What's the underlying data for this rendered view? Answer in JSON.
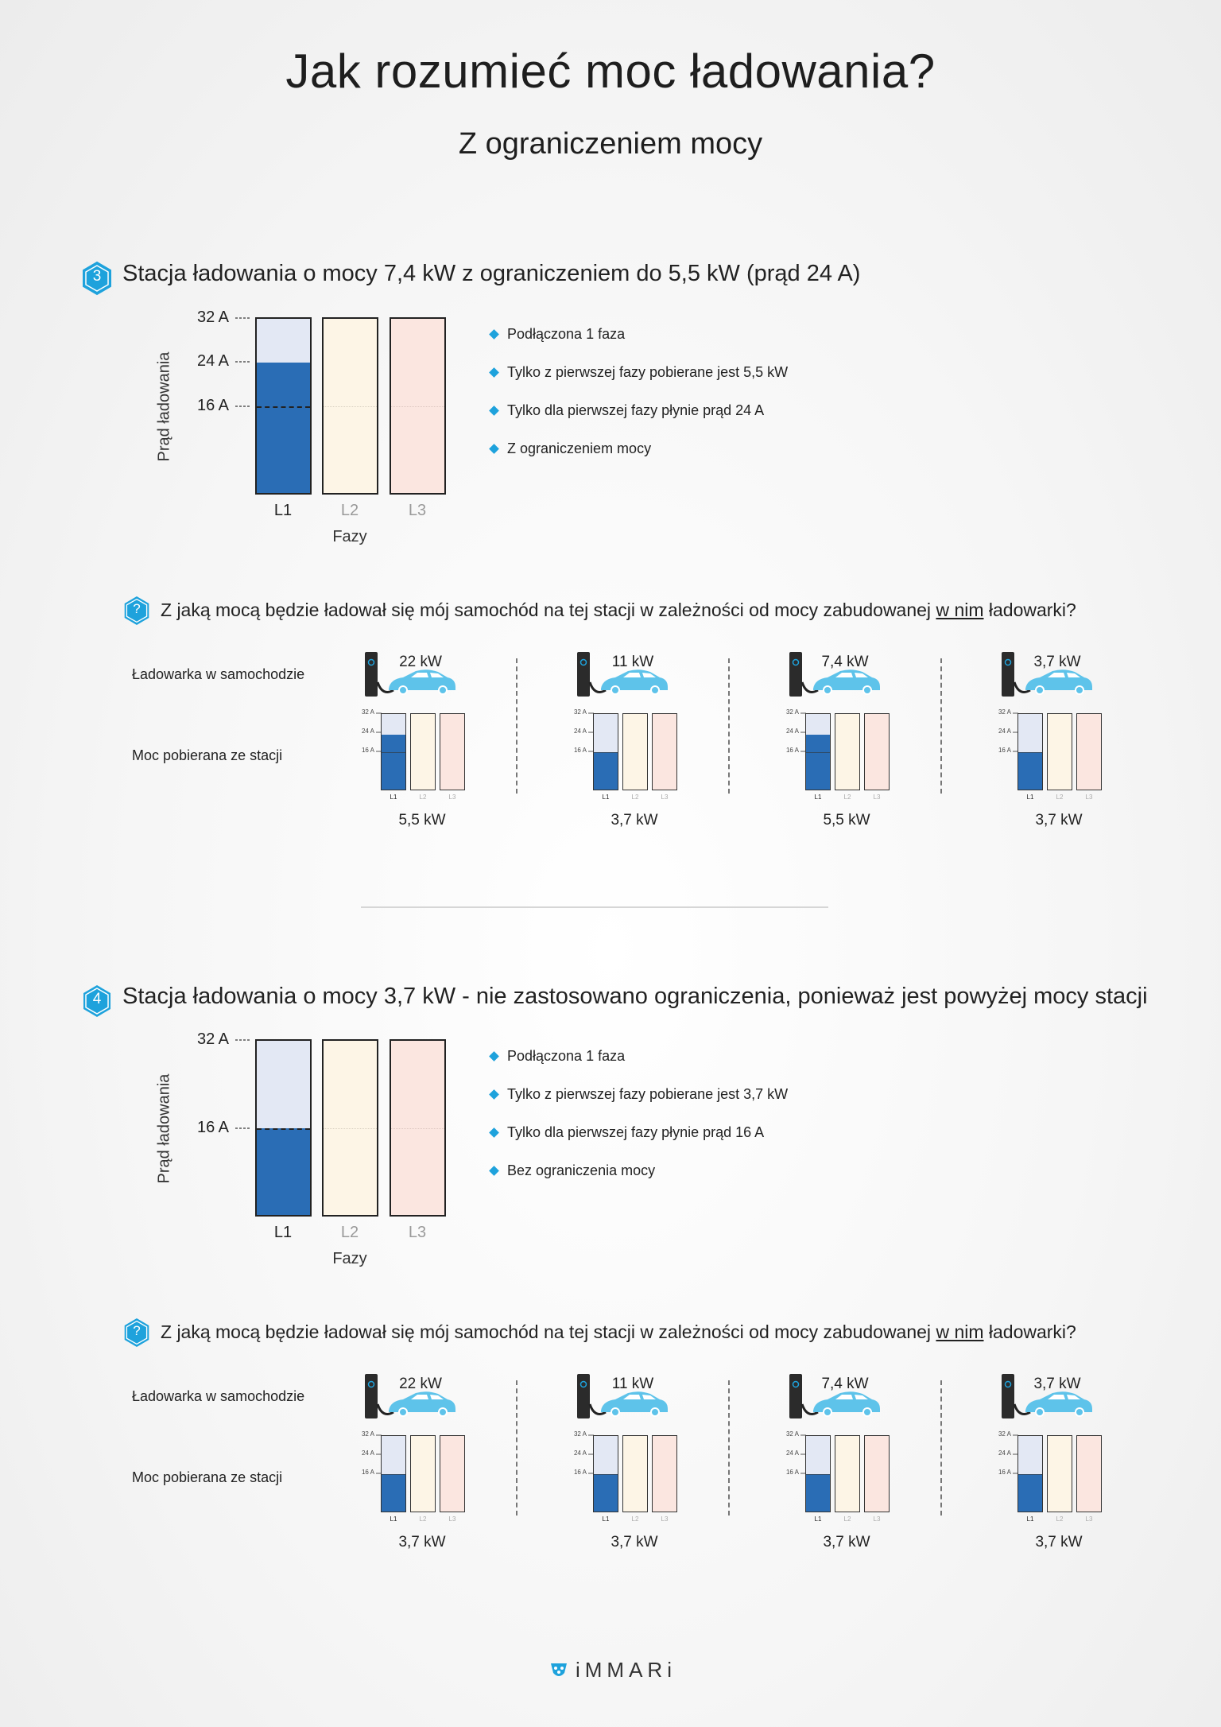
{
  "header": {
    "title": "Jak rozumieć moc ładowania?",
    "subtitle": "Z ograniczeniem mocy"
  },
  "sections": [
    {
      "number": "3",
      "title": "Stacja ładowania o mocy 7,4 kW z ograniczeniem do 5,5 kW (prąd 24 A)",
      "chart": {
        "ylabel": "Prąd ładowania",
        "xlabel": "Fazy",
        "ticks": [
          "32 A",
          "24 A",
          "16 A"
        ],
        "phases": [
          "L1",
          "L2",
          "L3"
        ],
        "l1_fill_fraction": 0.75
      },
      "bullets": [
        "Podłączona 1 faza",
        "Tylko z pierwszej fazy pobierane jest 5,5 kW",
        "Tylko dla pierwszej fazy płynie prąd 24 A",
        "Z ograniczeniem mocy"
      ],
      "question": {
        "pre": "Z jaką mocą będzie ładował się mój samochód na tej stacji w zależności od mocy zabudowanej ",
        "underlined": "w nim",
        "post": " ładowarki?"
      },
      "row_labels": [
        "Ładowarka w samochodzie",
        "Moc pobierana ze stacji"
      ],
      "scenarios": [
        {
          "charger": "22 kW",
          "result": "5,5 kW",
          "l1_fill_fraction": 0.75
        },
        {
          "charger": "11 kW",
          "result": "3,7 kW",
          "l1_fill_fraction": 0.5
        },
        {
          "charger": "7,4 kW",
          "result": "5,5 kW",
          "l1_fill_fraction": 0.75
        },
        {
          "charger": "3,7 kW",
          "result": "3,7 kW",
          "l1_fill_fraction": 0.5
        }
      ]
    },
    {
      "number": "4",
      "title": "Stacja ładowania o mocy 3,7 kW - nie zastosowano ograniczenia, ponieważ jest powyżej mocy stacji",
      "chart": {
        "ylabel": "Prąd ładowania",
        "xlabel": "Fazy",
        "ticks": [
          "32 A",
          "16 A"
        ],
        "phases": [
          "L1",
          "L2",
          "L3"
        ],
        "l1_fill_fraction": 0.5
      },
      "bullets": [
        "Podłączona 1 faza",
        "Tylko z pierwszej fazy pobierane jest 3,7 kW",
        "Tylko dla pierwszej fazy płynie prąd 16 A",
        "Bez ograniczenia mocy"
      ],
      "question": {
        "pre": "Z jaką mocą będzie ładował się mój samochód na tej stacji w zależności od mocy zabudowanej ",
        "underlined": "w nim",
        "post": " ładowarki?"
      },
      "row_labels": [
        "Ładowarka w samochodzie",
        "Moc pobierana ze stacji"
      ],
      "scenarios": [
        {
          "charger": "22 kW",
          "result": "3,7 kW",
          "l1_fill_fraction": 0.5
        },
        {
          "charger": "11 kW",
          "result": "3,7 kW",
          "l1_fill_fraction": 0.5
        },
        {
          "charger": "7,4 kW",
          "result": "3,7 kW",
          "l1_fill_fraction": 0.5
        },
        {
          "charger": "3,7 kW",
          "result": "3,7 kW",
          "l1_fill_fraction": 0.5
        }
      ],
      "mini_ticks": [
        "32 A",
        "24 A",
        "16 A"
      ]
    }
  ],
  "mini_ticks": [
    "32 A",
    "24 A",
    "16 A"
  ],
  "question_mark": "?",
  "footer": {
    "logo": "iMMARi"
  },
  "colors": {
    "l1_fill": "#2a6db5",
    "l1_bg": "#e3e8f4",
    "l2_bg": "#fdf5e6",
    "l3_bg": "#fbe6e0",
    "accent": "#1ea2dc",
    "car": "#5ec3ea"
  }
}
